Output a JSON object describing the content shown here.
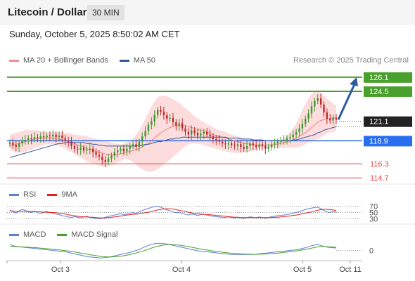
{
  "header": {
    "title": "Litecoin / Dollar",
    "interval": "30 MIN"
  },
  "datetime": "Sunday, October 5, 2025 8:50:02 AM CET",
  "legend_main": [
    {
      "label": "MA 20 + Bollinger Bands",
      "color": "#f28b8b"
    },
    {
      "label": "MA 50",
      "color": "#2f5a9e"
    }
  ],
  "copyright": "Research © 2025 Trading Central",
  "legend_rsi": [
    {
      "label": "RSI",
      "color": "#5b7fd6"
    },
    {
      "label": "9MA",
      "color": "#e02020"
    }
  ],
  "legend_macd": [
    {
      "label": "MACD",
      "color": "#5b7fd6"
    },
    {
      "label": "MACD Signal",
      "color": "#4aa02c"
    }
  ],
  "colors": {
    "up": "#3c9a2e",
    "down": "#c0282b",
    "band": "#fbd6d6",
    "support_blue": "#2a6ef0",
    "resistance_green": "#4aa02c",
    "dark_label": "#222222",
    "red_level": "#e04848"
  },
  "chart_data": [
    {
      "type": "candlestick",
      "title": "",
      "x_ticks": [
        "Oct 3",
        "Oct 4",
        "Oct 5",
        "Oct 11"
      ],
      "ylim": [
        114.0,
        127.2
      ],
      "levels": [
        {
          "value": 126.1,
          "label": "126.1",
          "style": "green"
        },
        {
          "value": 124.5,
          "label": "124.5",
          "style": "green"
        },
        {
          "value": 121.1,
          "label": "121.1",
          "style": "dark"
        },
        {
          "value": 118.9,
          "label": "118.9",
          "style": "blue"
        },
        {
          "value": 116.3,
          "label": "116.3",
          "style": "red"
        },
        {
          "value": 114.7,
          "label": "114.7",
          "style": "red"
        }
      ],
      "close": [
        118.7,
        118.4,
        118.2,
        118.6,
        118.9,
        119.0,
        119.2,
        119.1,
        119.3,
        119.2,
        119.4,
        119.3,
        119.5,
        119.4,
        119.6,
        119.3,
        119.5,
        119.2,
        118.9,
        118.8,
        118.3,
        118.0,
        117.9,
        118.1,
        117.8,
        117.9,
        118.0,
        117.6,
        117.3,
        117.1,
        116.7,
        116.5,
        116.9,
        117.2,
        117.6,
        117.8,
        118.0,
        117.7,
        118.0,
        118.3,
        118.5,
        118.2,
        118.8,
        119.4,
        120.0,
        120.7,
        121.1,
        121.8,
        122.4,
        122.2,
        121.8,
        121.4,
        121.5,
        121.0,
        120.6,
        120.9,
        120.3,
        119.9,
        119.6,
        120.1,
        119.8,
        119.5,
        119.7,
        119.9,
        119.6,
        119.4,
        119.1,
        119.0,
        118.8,
        118.6,
        118.5,
        118.6,
        118.4,
        118.3,
        118.5,
        118.2,
        118.0,
        118.3,
        118.6,
        118.4,
        118.2,
        118.5,
        118.3,
        118.0,
        118.2,
        118.5,
        118.6,
        118.8,
        118.9,
        119.0,
        119.2,
        119.3,
        119.6,
        119.9,
        120.3,
        120.8,
        121.4,
        122.0,
        122.8,
        123.4,
        123.7,
        123.0,
        122.1,
        121.4,
        121.2,
        121.5,
        121.3
      ],
      "ma20": [
        118.3,
        118.4,
        118.5,
        118.6,
        118.7,
        118.8,
        118.9,
        119.0,
        119.1,
        119.1,
        119.2,
        119.2,
        119.2,
        119.2,
        119.2,
        119.1,
        119.1,
        119.0,
        118.9,
        118.8,
        118.7,
        118.6,
        118.4,
        118.3,
        118.2,
        118.0,
        117.9,
        117.8,
        117.7,
        117.6,
        117.5,
        117.4,
        117.3,
        117.3,
        117.3,
        117.4,
        117.4,
        117.5,
        117.6,
        117.7,
        117.8,
        117.9,
        118.0,
        118.2,
        118.4,
        118.6,
        118.9,
        119.2,
        119.5,
        119.8,
        120.0,
        120.2,
        120.4,
        120.5,
        120.6,
        120.6,
        120.6,
        120.6,
        120.5,
        120.4,
        120.3,
        120.2,
        120.1,
        120.0,
        119.9,
        119.8,
        119.6,
        119.5,
        119.4,
        119.3,
        119.2,
        119.1,
        119.0,
        118.9,
        118.8,
        118.7,
        118.6,
        118.6,
        118.5,
        118.5,
        118.4,
        118.4,
        118.4,
        118.4,
        118.4,
        118.4,
        118.5,
        118.5,
        118.6,
        118.7,
        118.8,
        118.9,
        119.0,
        119.2,
        119.4,
        119.6,
        119.8,
        120.1,
        120.4,
        120.7,
        121.0,
        121.2,
        121.3,
        121.4,
        121.4,
        121.5,
        121.5
      ],
      "bb_upper": [
        119.6,
        119.7,
        119.8,
        119.9,
        120.0,
        120.1,
        120.1,
        120.1,
        120.1,
        120.1,
        120.0,
        120.0,
        119.9,
        119.9,
        119.9,
        119.9,
        119.9,
        119.9,
        119.8,
        119.8,
        119.7,
        119.6,
        119.6,
        119.5,
        119.5,
        119.4,
        119.3,
        119.2,
        119.1,
        119.0,
        119.0,
        118.9,
        118.8,
        118.7,
        118.6,
        118.6,
        118.5,
        118.6,
        118.7,
        118.9,
        119.2,
        119.6,
        120.1,
        120.7,
        121.4,
        122.1,
        122.8,
        123.4,
        123.8,
        124.0,
        124.0,
        123.9,
        123.8,
        123.6,
        123.4,
        123.2,
        122.9,
        122.6,
        122.3,
        122.0,
        121.7,
        121.4,
        121.2,
        121.0,
        120.8,
        120.6,
        120.4,
        120.2,
        120.1,
        120.0,
        119.9,
        119.7,
        119.6,
        119.5,
        119.4,
        119.3,
        119.2,
        119.1,
        119.0,
        118.9,
        118.9,
        118.9,
        118.8,
        118.8,
        118.8,
        118.8,
        118.8,
        118.9,
        119.0,
        119.2,
        119.5,
        119.8,
        120.3,
        120.9,
        121.6,
        122.4,
        123.1,
        123.7,
        124.2,
        124.5,
        124.5,
        124.3,
        124.0,
        123.7,
        123.4,
        123.1,
        122.9
      ],
      "bb_lower": [
        117.8,
        117.7,
        117.6,
        117.6,
        117.6,
        117.7,
        117.8,
        117.9,
        118.1,
        118.2,
        118.3,
        118.4,
        118.5,
        118.5,
        118.5,
        118.4,
        118.3,
        118.2,
        118.0,
        117.8,
        117.6,
        117.4,
        117.2,
        117.0,
        116.8,
        116.6,
        116.4,
        116.3,
        116.2,
        116.1,
        116.0,
        115.9,
        116.0,
        116.1,
        116.3,
        116.5,
        116.6,
        116.8,
        116.8,
        116.7,
        116.5,
        116.2,
        115.9,
        115.7,
        115.5,
        115.4,
        115.4,
        115.5,
        115.7,
        115.9,
        116.2,
        116.5,
        116.8,
        117.1,
        117.4,
        117.7,
        118.0,
        118.3,
        118.5,
        118.6,
        118.6,
        118.6,
        118.5,
        118.4,
        118.3,
        118.2,
        118.1,
        118.0,
        117.9,
        117.8,
        117.7,
        117.6,
        117.6,
        117.5,
        117.5,
        117.5,
        117.6,
        117.6,
        117.7,
        117.8,
        117.9,
        118.0,
        118.0,
        118.1,
        118.1,
        118.1,
        118.1,
        118.1,
        118.1,
        118.1,
        118.1,
        118.1,
        118.1,
        118.1,
        118.2,
        118.3,
        118.5,
        118.7,
        118.9,
        119.0,
        119.1,
        119.3,
        119.5,
        119.7,
        119.8,
        119.9,
        120.0
      ],
      "ma50": [
        117.0,
        117.1,
        117.2,
        117.3,
        117.4,
        117.5,
        117.6,
        117.7,
        117.8,
        117.9,
        118.0,
        118.1,
        118.2,
        118.3,
        118.4,
        118.5,
        118.6,
        118.6,
        118.7,
        118.7,
        118.7,
        118.7,
        118.7,
        118.7,
        118.7,
        118.6,
        118.6,
        118.5,
        118.5,
        118.4,
        118.4,
        118.3,
        118.3,
        118.3,
        118.3,
        118.3,
        118.3,
        118.3,
        118.3,
        118.3,
        118.3,
        118.3,
        118.4,
        118.4,
        118.5,
        118.5,
        118.6,
        118.7,
        118.8,
        118.8,
        118.9,
        119.0,
        119.1,
        119.1,
        119.2,
        119.2,
        119.3,
        119.3,
        119.3,
        119.3,
        119.3,
        119.3,
        119.3,
        119.3,
        119.3,
        119.3,
        119.3,
        119.3,
        119.3,
        119.3,
        119.3,
        119.2,
        119.2,
        119.2,
        119.2,
        119.1,
        119.1,
        119.1,
        119.1,
        119.0,
        119.0,
        119.0,
        119.0,
        118.9,
        118.9,
        118.9,
        118.9,
        118.9,
        118.9,
        118.9,
        118.9,
        118.9,
        119.0,
        119.0,
        119.1,
        119.2,
        119.3,
        119.4,
        119.5,
        119.6,
        119.8,
        119.9,
        120.1,
        120.2,
        120.3,
        120.4,
        120.5
      ],
      "forecast_target": 126.1
    },
    {
      "type": "line",
      "title": "",
      "name": "RSI",
      "levels": [
        70,
        50,
        30
      ],
      "ylim": [
        20,
        80
      ],
      "rsi": [
        58,
        52,
        48,
        55,
        60,
        57,
        52,
        50,
        54,
        49,
        47,
        51,
        53,
        50,
        48,
        45,
        43,
        40,
        38,
        36,
        34,
        37,
        35,
        33,
        36,
        38,
        35,
        33,
        31,
        30,
        32,
        35,
        38,
        40,
        42,
        44,
        46,
        43,
        45,
        48,
        50,
        47,
        52,
        56,
        60,
        63,
        66,
        68,
        70,
        67,
        62,
        58,
        56,
        52,
        49,
        51,
        47,
        44,
        42,
        45,
        43,
        41,
        43,
        45,
        42,
        40,
        38,
        37,
        36,
        35,
        34,
        36,
        34,
        33,
        35,
        33,
        32,
        34,
        36,
        35,
        33,
        36,
        34,
        32,
        34,
        37,
        38,
        40,
        41,
        42,
        44,
        45,
        48,
        50,
        53,
        56,
        59,
        62,
        64,
        66,
        67,
        62,
        56,
        52,
        50,
        53,
        51
      ],
      "ma9": [
        55,
        55,
        54,
        54,
        54,
        54,
        54,
        53,
        53,
        53,
        52,
        51,
        51,
        50,
        50,
        49,
        48,
        47,
        45,
        43,
        41,
        40,
        38,
        37,
        36,
        36,
        35,
        35,
        34,
        33,
        33,
        33,
        34,
        35,
        36,
        37,
        39,
        40,
        42,
        43,
        44,
        45,
        46,
        48,
        49,
        51,
        53,
        56,
        58,
        60,
        61,
        62,
        62,
        61,
        59,
        57,
        55,
        53,
        51,
        49,
        47,
        46,
        45,
        44,
        43,
        43,
        42,
        41,
        40,
        39,
        38,
        37,
        36,
        35,
        35,
        34,
        34,
        34,
        34,
        34,
        34,
        34,
        34,
        34,
        34,
        34,
        35,
        35,
        36,
        37,
        38,
        39,
        41,
        42,
        44,
        46,
        48,
        50,
        52,
        55,
        57,
        59,
        60,
        60,
        59,
        58,
        56
      ]
    },
    {
      "type": "line",
      "title": "",
      "name": "MACD",
      "zero_label": "0",
      "ylim": [
        -1.4,
        1.4
      ],
      "macd": [
        0.9,
        0.7,
        0.6,
        0.55,
        0.5,
        0.45,
        0.4,
        0.35,
        0.3,
        0.25,
        0.2,
        0.15,
        0.1,
        0.05,
        0.0,
        -0.05,
        -0.1,
        -0.15,
        -0.2,
        -0.3,
        -0.4,
        -0.5,
        -0.6,
        -0.7,
        -0.8,
        -0.9,
        -0.95,
        -1.0,
        -1.05,
        -1.1,
        -1.1,
        -1.05,
        -1.0,
        -0.9,
        -0.8,
        -0.7,
        -0.6,
        -0.5,
        -0.4,
        -0.3,
        -0.15,
        0.0,
        0.15,
        0.35,
        0.55,
        0.75,
        0.9,
        1.0,
        1.05,
        1.05,
        1.0,
        0.95,
        0.85,
        0.75,
        0.65,
        0.55,
        0.45,
        0.35,
        0.25,
        0.15,
        0.05,
        -0.05,
        -0.1,
        -0.15,
        -0.2,
        -0.25,
        -0.3,
        -0.35,
        -0.4,
        -0.45,
        -0.5,
        -0.55,
        -0.6,
        -0.6,
        -0.6,
        -0.6,
        -0.6,
        -0.6,
        -0.6,
        -0.6,
        -0.55,
        -0.5,
        -0.45,
        -0.4,
        -0.35,
        -0.3,
        -0.25,
        -0.2,
        -0.15,
        -0.1,
        -0.05,
        0.0,
        0.05,
        0.1,
        0.2,
        0.3,
        0.4,
        0.55,
        0.7,
        0.8,
        0.85,
        0.75,
        0.6,
        0.5,
        0.45,
        0.4,
        0.35
      ],
      "signal": [
        0.6,
        0.58,
        0.56,
        0.54,
        0.52,
        0.5,
        0.48,
        0.45,
        0.42,
        0.38,
        0.34,
        0.3,
        0.26,
        0.22,
        0.18,
        0.13,
        0.08,
        0.03,
        -0.02,
        -0.08,
        -0.15,
        -0.22,
        -0.3,
        -0.38,
        -0.46,
        -0.55,
        -0.63,
        -0.7,
        -0.77,
        -0.84,
        -0.9,
        -0.93,
        -0.95,
        -0.95,
        -0.93,
        -0.9,
        -0.85,
        -0.78,
        -0.7,
        -0.6,
        -0.5,
        -0.38,
        -0.25,
        -0.12,
        0.02,
        0.18,
        0.35,
        0.5,
        0.62,
        0.72,
        0.8,
        0.85,
        0.87,
        0.86,
        0.83,
        0.78,
        0.72,
        0.65,
        0.57,
        0.48,
        0.39,
        0.3,
        0.21,
        0.13,
        0.06,
        -0.01,
        -0.08,
        -0.14,
        -0.2,
        -0.26,
        -0.31,
        -0.36,
        -0.41,
        -0.45,
        -0.48,
        -0.51,
        -0.53,
        -0.55,
        -0.56,
        -0.57,
        -0.57,
        -0.56,
        -0.55,
        -0.53,
        -0.5,
        -0.47,
        -0.43,
        -0.39,
        -0.34,
        -0.29,
        -0.24,
        -0.18,
        -0.12,
        -0.06,
        0.0,
        0.07,
        0.15,
        0.24,
        0.34,
        0.44,
        0.53,
        0.58,
        0.58,
        0.56,
        0.53,
        0.5,
        0.47
      ]
    }
  ]
}
